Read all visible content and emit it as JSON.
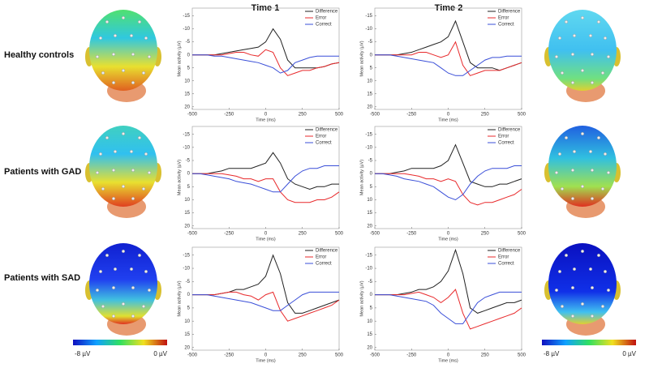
{
  "column_titles": [
    "Time 1",
    "Time 2"
  ],
  "row_labels": [
    "Healthy controls",
    "Patients with GAD",
    "Patients with SAD"
  ],
  "colorbars": [
    {
      "min_label": "-8 µV",
      "max_label": "0 µV"
    },
    {
      "min_label": "-8 µV",
      "max_label": "0 µV"
    }
  ],
  "chart_data": [
    {
      "type": "line",
      "xlabel": "Time (ms)",
      "ylabel": "Mean activity (µV)",
      "y_inverted": true,
      "legend": "upper right",
      "x": [
        -500,
        -450,
        -400,
        -350,
        -300,
        -250,
        -200,
        -150,
        -100,
        -50,
        0,
        50,
        100,
        150,
        200,
        250,
        300,
        350,
        400,
        450,
        500
      ],
      "xlim": [
        -500,
        500
      ],
      "xticks": [
        -500,
        -250,
        0,
        250,
        500
      ],
      "ylim": [
        -18,
        21
      ],
      "yticks": [
        -15,
        -10,
        -5,
        0,
        5,
        10,
        15,
        20
      ],
      "series": [
        {
          "name": "Difference",
          "color": "#222222",
          "values": [
            0,
            0,
            0,
            0,
            -0.5,
            -1,
            -1.5,
            -2,
            -2.5,
            -3,
            -5,
            -10,
            -6,
            2,
            5,
            5,
            5,
            5,
            4.5,
            3.5,
            3
          ]
        },
        {
          "name": "Error",
          "color": "#e8292b",
          "values": [
            0,
            0,
            0,
            0,
            0,
            -0.5,
            -1,
            -1,
            0,
            0.5,
            -2,
            -1,
            5,
            8,
            7,
            6,
            6,
            5,
            4.5,
            3.5,
            3
          ]
        },
        {
          "name": "Correct",
          "color": "#3a4fd8",
          "values": [
            0,
            0,
            0,
            0.5,
            0.5,
            1,
            1.5,
            2,
            2.5,
            3,
            4,
            5,
            7,
            6,
            3,
            2,
            1,
            0.5,
            0.5,
            0.5,
            0.5
          ]
        }
      ]
    },
    {
      "type": "line",
      "xlabel": "Time (ms)",
      "ylabel": "Mean activity (µV)",
      "y_inverted": true,
      "legend": "upper right",
      "x": [
        -500,
        -450,
        -400,
        -350,
        -300,
        -250,
        -200,
        -150,
        -100,
        -50,
        0,
        50,
        100,
        150,
        200,
        250,
        300,
        350,
        400,
        450,
        500
      ],
      "xlim": [
        -500,
        500
      ],
      "xticks": [
        -500,
        -250,
        0,
        250,
        500
      ],
      "ylim": [
        -18,
        21
      ],
      "yticks": [
        -15,
        -10,
        -5,
        0,
        5,
        10,
        15,
        20
      ],
      "series": [
        {
          "name": "Difference",
          "color": "#222222",
          "values": [
            0,
            0,
            0,
            0,
            -0.5,
            -1,
            -2,
            -3,
            -4,
            -5,
            -7,
            -13,
            -5,
            3,
            5,
            5,
            5,
            6,
            5,
            4,
            3
          ]
        },
        {
          "name": "Error",
          "color": "#e8292b",
          "values": [
            0,
            0,
            0,
            0,
            0,
            0,
            -1,
            -1,
            0,
            1,
            0,
            -5,
            4,
            8,
            7,
            6,
            6,
            6,
            5,
            4,
            3
          ]
        },
        {
          "name": "Correct",
          "color": "#3a4fd8",
          "values": [
            0,
            0,
            0,
            0.5,
            1,
            1.5,
            2,
            2.5,
            3,
            5,
            7,
            8,
            8,
            6,
            4,
            2,
            1,
            1,
            0.5,
            0.5,
            0.5
          ]
        }
      ]
    },
    {
      "type": "line",
      "xlabel": "Time (ms)",
      "ylabel": "Mean activity (µV)",
      "y_inverted": true,
      "legend": "upper right",
      "x": [
        -500,
        -450,
        -400,
        -350,
        -300,
        -250,
        -200,
        -150,
        -100,
        -50,
        0,
        50,
        100,
        150,
        200,
        250,
        300,
        350,
        400,
        450,
        500
      ],
      "xlim": [
        -500,
        500
      ],
      "xticks": [
        -500,
        -250,
        0,
        250,
        500
      ],
      "ylim": [
        -18,
        21
      ],
      "yticks": [
        -15,
        -10,
        -5,
        0,
        5,
        10,
        15,
        20
      ],
      "series": [
        {
          "name": "Difference",
          "color": "#222222",
          "values": [
            0,
            0,
            0,
            -0.5,
            -1,
            -2,
            -2,
            -2,
            -2,
            -3,
            -4,
            -8,
            -4,
            2,
            4,
            5,
            6,
            5,
            5,
            4,
            4
          ]
        },
        {
          "name": "Error",
          "color": "#e8292b",
          "values": [
            0,
            0,
            0,
            0,
            0,
            0.5,
            1,
            2,
            2,
            3,
            2,
            2,
            7,
            10,
            11,
            11,
            11,
            10,
            10,
            9,
            7
          ]
        },
        {
          "name": "Correct",
          "color": "#3a4fd8",
          "values": [
            0,
            0,
            0.5,
            1,
            1.5,
            2,
            3,
            3.5,
            4,
            5,
            6,
            7,
            7,
            4,
            1,
            -1,
            -2,
            -2,
            -3,
            -3,
            -3
          ]
        }
      ]
    },
    {
      "type": "line",
      "xlabel": "Time (ms)",
      "ylabel": "Mean activity (µV)",
      "y_inverted": true,
      "legend": "upper right",
      "x": [
        -500,
        -450,
        -400,
        -350,
        -300,
        -250,
        -200,
        -150,
        -100,
        -50,
        0,
        50,
        100,
        150,
        200,
        250,
        300,
        350,
        400,
        450,
        500
      ],
      "xlim": [
        -500,
        500
      ],
      "xticks": [
        -500,
        -250,
        0,
        250,
        500
      ],
      "ylim": [
        -18,
        21
      ],
      "yticks": [
        -15,
        -10,
        -5,
        0,
        5,
        10,
        15,
        20
      ],
      "series": [
        {
          "name": "Difference",
          "color": "#222222",
          "values": [
            0,
            0,
            0,
            -0.5,
            -1,
            -2,
            -2,
            -2,
            -2,
            -3,
            -5,
            -11,
            -4,
            3,
            4,
            5,
            5,
            4,
            4,
            3,
            2
          ]
        },
        {
          "name": "Error",
          "color": "#e8292b",
          "values": [
            0,
            0,
            0,
            0,
            0,
            0.5,
            1,
            2,
            2,
            3,
            2,
            3,
            8,
            11,
            12,
            11,
            11,
            10,
            9,
            8,
            6
          ]
        },
        {
          "name": "Correct",
          "color": "#3a4fd8",
          "values": [
            0,
            0,
            0.5,
            1,
            2,
            2.5,
            3,
            4,
            5,
            7,
            9,
            10,
            8,
            4,
            1,
            -1,
            -2,
            -2,
            -2,
            -3,
            -3
          ]
        }
      ]
    },
    {
      "type": "line",
      "xlabel": "Time (ms)",
      "ylabel": "Mean activity (µV)",
      "y_inverted": true,
      "legend": "upper right",
      "x": [
        -500,
        -450,
        -400,
        -350,
        -300,
        -250,
        -200,
        -150,
        -100,
        -50,
        0,
        50,
        100,
        150,
        200,
        250,
        300,
        350,
        400,
        450,
        500
      ],
      "xlim": [
        -500,
        500
      ],
      "xticks": [
        -500,
        -250,
        0,
        250,
        500
      ],
      "ylim": [
        -18,
        21
      ],
      "yticks": [
        -15,
        -10,
        -5,
        0,
        5,
        10,
        15,
        20
      ],
      "series": [
        {
          "name": "Difference",
          "color": "#222222",
          "values": [
            0,
            0,
            0,
            0,
            -0.5,
            -1,
            -2,
            -2,
            -3,
            -4,
            -7,
            -15,
            -8,
            3,
            7,
            7,
            6,
            5,
            4,
            3,
            2
          ]
        },
        {
          "name": "Error",
          "color": "#e8292b",
          "values": [
            0,
            0,
            0,
            0,
            -0.5,
            -1,
            -1,
            0,
            0.5,
            2,
            0,
            -1,
            6,
            10,
            9,
            8,
            7,
            6,
            5,
            4,
            2
          ]
        },
        {
          "name": "Correct",
          "color": "#3a4fd8",
          "values": [
            0,
            0,
            0,
            0.5,
            1,
            1.5,
            2,
            2.5,
            3,
            4,
            5,
            6,
            6,
            4,
            2,
            0,
            -1,
            -1,
            -1,
            -1,
            -1
          ]
        }
      ]
    },
    {
      "type": "line",
      "xlabel": "Time (ms)",
      "ylabel": "Mean activity (µV)",
      "y_inverted": true,
      "legend": "upper right",
      "x": [
        -500,
        -450,
        -400,
        -350,
        -300,
        -250,
        -200,
        -150,
        -100,
        -50,
        0,
        50,
        100,
        150,
        200,
        250,
        300,
        350,
        400,
        450,
        500
      ],
      "xlim": [
        -500,
        500
      ],
      "xticks": [
        -500,
        -250,
        0,
        250,
        500
      ],
      "ylim": [
        -18,
        21
      ],
      "yticks": [
        -15,
        -10,
        -5,
        0,
        5,
        10,
        15,
        20
      ],
      "series": [
        {
          "name": "Difference",
          "color": "#222222",
          "values": [
            0,
            0,
            0,
            0,
            -0.5,
            -1,
            -2,
            -2,
            -3,
            -5,
            -9,
            -17,
            -8,
            5,
            7,
            6,
            5,
            4,
            3,
            3,
            2
          ]
        },
        {
          "name": "Error",
          "color": "#e8292b",
          "values": [
            0,
            0,
            0,
            0,
            0,
            -0.5,
            -1,
            0,
            1,
            3,
            1,
            -2,
            7,
            13,
            12,
            11,
            10,
            9,
            8,
            7,
            5
          ]
        },
        {
          "name": "Correct",
          "color": "#3a4fd8",
          "values": [
            0,
            0,
            0,
            0.5,
            1,
            1.5,
            2,
            2.5,
            4,
            7,
            9,
            11,
            11,
            7,
            3,
            1,
            0,
            -1,
            -1,
            -1,
            -1
          ]
        }
      ]
    }
  ]
}
